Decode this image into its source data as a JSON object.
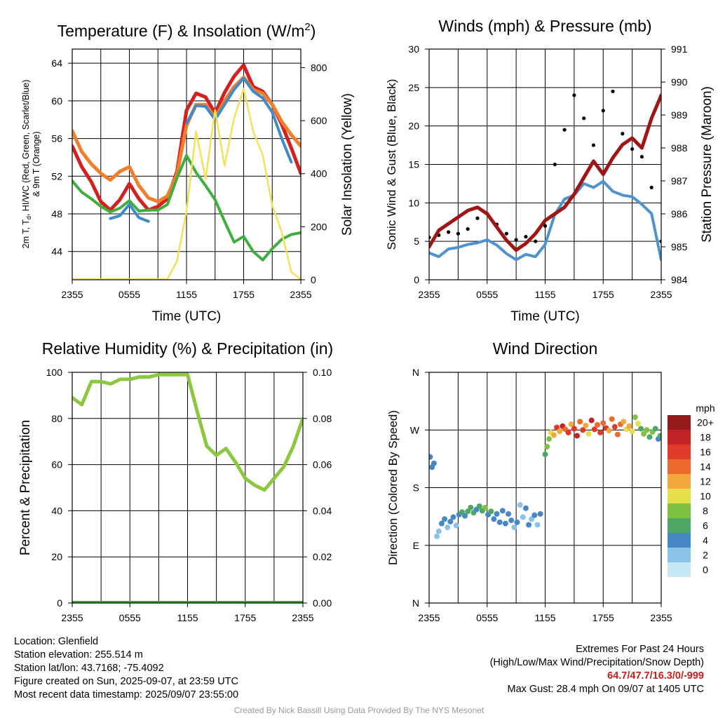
{
  "colors": {
    "temperature": "#d42020",
    "dewpoint": "#3fae3f",
    "heat_index_wind_chill": "#3d8bcb",
    "temp_9m": "#f07f2d",
    "insolation": "#f5e05a",
    "wind_speed": "#4d93cf",
    "gust": "#000000",
    "pressure": "#a01616",
    "humidity": "#8dc63f",
    "precip": "#3aa23a",
    "extremes_values": "#c81e1e",
    "credit": "#9a9a9a"
  },
  "chart_data": [
    {
      "id": "temperature",
      "type": "line",
      "title": "Temperature (F) & Insolation (W/m²)",
      "title_main": "Temperature (F) & Insolation (W/m",
      "title_sup": "2",
      "title_close": ")",
      "xlabel": "Time (UTC)",
      "ylabel_lines": [
        "2m T, Tₐ, HI/WC (Red, Green, Scarlet/Blue)",
        "& 9m T (Orange)"
      ],
      "ylabel_left": "2m T, T",
      "ylabel_sub": "d",
      "ylabel_right": ", HI/WC (Red, Green, Scarlet/Blue)",
      "ylabel_line2": "& 9m T (Orange)",
      "y2label": "Solar Insolation (Yellow)",
      "x_ticks": [
        "2355",
        "0555",
        "1155",
        "1755",
        "2355"
      ],
      "x": [
        0,
        1,
        2,
        3,
        4,
        5,
        6,
        7,
        8,
        9,
        10,
        11,
        12,
        13,
        14,
        15,
        16,
        17,
        18,
        19,
        20,
        21,
        22,
        23,
        24
      ],
      "ylim": [
        41,
        65.5
      ],
      "yticks": [
        44,
        48,
        52,
        56,
        60,
        64
      ],
      "y2lim": [
        0,
        870
      ],
      "y2ticks": [
        0,
        200,
        400,
        600,
        800
      ],
      "grid": true,
      "series": [
        {
          "name": "2m Temperature",
          "axis": "left",
          "color": "#d42020",
          "width": 5,
          "values": [
            55.2,
            53.0,
            51.4,
            49.3,
            48.4,
            49.5,
            51.2,
            49.6,
            48.4,
            48.8,
            49.6,
            52.5,
            59.0,
            60.8,
            60.4,
            58.7,
            60.9,
            62.6,
            63.8,
            61.5,
            61.0,
            59.6,
            57.5,
            55.0,
            52.3
          ]
        },
        {
          "name": "9m Temperature",
          "axis": "left",
          "color": "#f07f2d",
          "width": 5,
          "values": [
            56.8,
            54.6,
            53.3,
            52.3,
            51.6,
            52.5,
            53.0,
            51.0,
            49.7,
            49.3,
            49.9,
            52.2,
            57.4,
            59.6,
            59.6,
            58.2,
            60.0,
            61.5,
            62.5,
            61.2,
            60.8,
            59.6,
            57.8,
            56.4,
            55.2
          ]
        },
        {
          "name": "Heat Index / Wind Chill",
          "axis": "left",
          "color": "#3d8bcb",
          "width": 4,
          "values": [
            null,
            null,
            null,
            null,
            47.5,
            47.8,
            49.0,
            47.6,
            47.2,
            null,
            null,
            null,
            57.6,
            59.5,
            59.4,
            58.0,
            59.6,
            61.2,
            62.4,
            61.0,
            60.3,
            58.8,
            56.0,
            53.5,
            null
          ]
        },
        {
          "name": "Dewpoint",
          "axis": "left",
          "color": "#3fae3f",
          "width": 4,
          "values": [
            51.5,
            50.3,
            49.6,
            48.8,
            48.2,
            48.6,
            49.4,
            48.3,
            48.4,
            48.4,
            49.0,
            51.8,
            54.2,
            52.4,
            51.0,
            49.5,
            47.2,
            45.0,
            45.6,
            44.0,
            43.1,
            44.3,
            45.3,
            45.8,
            46.0
          ]
        },
        {
          "name": "Solar Insolation",
          "axis": "right",
          "color": "#f5e05a",
          "width": 2.5,
          "values": [
            2,
            2,
            2,
            2,
            2,
            2,
            2,
            2,
            2,
            2,
            2,
            70,
            260,
            560,
            380,
            640,
            430,
            610,
            720,
            560,
            470,
            280,
            180,
            30,
            2
          ]
        }
      ]
    },
    {
      "id": "winds",
      "type": "line",
      "title": "Winds (mph) & Pressure (mb)",
      "xlabel": "Time (UTC)",
      "ylabel": "Sonic Wind & Gust (Blue, Black)",
      "y2label": "Station Pressure (Maroon)",
      "x_ticks": [
        "2355",
        "0555",
        "1155",
        "1755",
        "2355"
      ],
      "x": [
        0,
        1,
        2,
        3,
        4,
        5,
        6,
        7,
        8,
        9,
        10,
        11,
        12,
        13,
        14,
        15,
        16,
        17,
        18,
        19,
        20,
        21,
        22,
        23,
        24
      ],
      "ylim": [
        0,
        30
      ],
      "yticks": [
        0,
        5,
        10,
        15,
        20,
        25,
        30
      ],
      "y2lim": [
        984,
        991
      ],
      "y2ticks": [
        984,
        985,
        986,
        987,
        988,
        989,
        990,
        991
      ],
      "grid": true,
      "series": [
        {
          "name": "Sonic Wind",
          "axis": "left",
          "color": "#4d93cf",
          "width": 4,
          "values": [
            3.5,
            3.0,
            4.0,
            4.2,
            4.6,
            4.8,
            5.2,
            4.5,
            3.4,
            2.6,
            3.3,
            3.0,
            4.6,
            8.5,
            10.5,
            11.0,
            12.5,
            12.0,
            12.8,
            11.5,
            11.0,
            10.8,
            9.8,
            8.6,
            2.6
          ]
        },
        {
          "name": "Gust",
          "axis": "left",
          "color": "#000000",
          "width": 0,
          "marker": "dot",
          "values": [
            5.5,
            5.8,
            6.2,
            6.0,
            6.6,
            8.0,
            8.6,
            7.2,
            6.0,
            5.2,
            5.6,
            5.0,
            7.0,
            15.0,
            19.5,
            24.0,
            21.0,
            17.5,
            22.0,
            24.5,
            19.0,
            17.0,
            16.0,
            12.0,
            5.0
          ]
        },
        {
          "name": "Station Pressure",
          "axis": "right",
          "color": "#a01616",
          "width": 5,
          "values": [
            985.0,
            985.5,
            985.7,
            985.9,
            986.1,
            986.2,
            986.0,
            985.6,
            985.2,
            984.9,
            985.1,
            985.4,
            985.8,
            986.0,
            986.2,
            986.6,
            987.1,
            987.6,
            987.2,
            987.7,
            988.1,
            988.3,
            988.0,
            988.9,
            989.6
          ]
        }
      ]
    },
    {
      "id": "humidity",
      "type": "line",
      "title": "Relative Humidity (%) & Precipitation (in)",
      "xlabel": "",
      "ylabel": "Percent & Precipitation",
      "x_ticks": [
        "2355",
        "0555",
        "1155",
        "1755",
        "2355"
      ],
      "x": [
        0,
        1,
        2,
        3,
        4,
        5,
        6,
        7,
        8,
        9,
        10,
        11,
        12,
        13,
        14,
        15,
        16,
        17,
        18,
        19,
        20,
        21,
        22,
        23,
        24
      ],
      "ylim": [
        0,
        100
      ],
      "yticks": [
        0,
        20,
        40,
        60,
        80,
        100
      ],
      "y2lim": [
        0,
        0.1
      ],
      "y2ticks": [
        "0.00",
        "0.02",
        "0.04",
        "0.06",
        "0.08",
        "0.10"
      ],
      "grid": true,
      "series": [
        {
          "name": "Relative Humidity",
          "axis": "left",
          "color": "#8dc63f",
          "width": 5,
          "values": [
            89,
            86,
            96,
            96,
            95,
            97,
            97,
            98,
            98,
            99,
            99,
            99,
            99,
            83,
            68,
            64,
            67,
            61,
            54,
            51,
            49,
            54,
            59,
            68,
            80
          ]
        },
        {
          "name": "Precipitation",
          "axis": "right",
          "color": "#3aa23a",
          "width": 6,
          "values": [
            0,
            0,
            0,
            0,
            0,
            0,
            0,
            0,
            0,
            0,
            0,
            0,
            0,
            0,
            0,
            0,
            0,
            0,
            0,
            0,
            0,
            0,
            0,
            0,
            0
          ]
        }
      ]
    },
    {
      "id": "wind_direction",
      "type": "scatter",
      "title": "Wind Direction",
      "ylabel": "Direction (Colored By Speed)",
      "x_ticks": [
        "2355",
        "0555",
        "1155",
        "1755",
        "2355"
      ],
      "ylim": [
        0,
        360
      ],
      "ytick_labels": [
        "N",
        "E",
        "S",
        "W",
        "N"
      ],
      "ytick_values": [
        0,
        90,
        180,
        270,
        360
      ],
      "grid": true,
      "colorbar_title": "mph",
      "colorbar_labels": [
        "0",
        "2",
        "4",
        "6",
        "8",
        "10",
        "12",
        "14",
        "16",
        "18",
        "20+"
      ],
      "colorbar_colors": [
        "#c6e8f7",
        "#8ac3e8",
        "#4787c4",
        "#4ca864",
        "#7fc142",
        "#e6df4a",
        "#f4a83e",
        "#ed6a2d",
        "#e03a2b",
        "#c42325",
        "#951b1d"
      ],
      "points": [
        {
          "t": 0.1,
          "dir": 228,
          "c": 2
        },
        {
          "t": 0.3,
          "dir": 212,
          "c": 2
        },
        {
          "t": 0.5,
          "dir": 218,
          "c": 2
        },
        {
          "t": 0.8,
          "dir": 104,
          "c": 1
        },
        {
          "t": 1.0,
          "dir": 112,
          "c": 1
        },
        {
          "t": 1.3,
          "dir": 124,
          "c": 2
        },
        {
          "t": 1.6,
          "dir": 131,
          "c": 2
        },
        {
          "t": 1.9,
          "dir": 118,
          "c": 1
        },
        {
          "t": 2.2,
          "dir": 127,
          "c": 2
        },
        {
          "t": 2.5,
          "dir": 134,
          "c": 2
        },
        {
          "t": 2.8,
          "dir": 121,
          "c": 1
        },
        {
          "t": 3.1,
          "dir": 138,
          "c": 2
        },
        {
          "t": 3.4,
          "dir": 142,
          "c": 3
        },
        {
          "t": 3.7,
          "dir": 136,
          "c": 2
        },
        {
          "t": 4.0,
          "dir": 143,
          "c": 3
        },
        {
          "t": 4.3,
          "dir": 149,
          "c": 3
        },
        {
          "t": 4.6,
          "dir": 141,
          "c": 3
        },
        {
          "t": 4.9,
          "dir": 146,
          "c": 2
        },
        {
          "t": 5.2,
          "dir": 151,
          "c": 3
        },
        {
          "t": 5.5,
          "dir": 144,
          "c": 3
        },
        {
          "t": 5.8,
          "dir": 149,
          "c": 4
        },
        {
          "t": 6.1,
          "dir": 138,
          "c": 2
        },
        {
          "t": 6.4,
          "dir": 143,
          "c": 3
        },
        {
          "t": 6.7,
          "dir": 131,
          "c": 2
        },
        {
          "t": 7.0,
          "dir": 139,
          "c": 2
        },
        {
          "t": 7.3,
          "dir": 126,
          "c": 2
        },
        {
          "t": 7.6,
          "dir": 144,
          "c": 2
        },
        {
          "t": 7.9,
          "dir": 124,
          "c": 2
        },
        {
          "t": 8.2,
          "dir": 139,
          "c": 2
        },
        {
          "t": 8.5,
          "dir": 129,
          "c": 2
        },
        {
          "t": 8.8,
          "dir": 118,
          "c": 1
        },
        {
          "t": 9.1,
          "dir": 126,
          "c": 2
        },
        {
          "t": 9.4,
          "dir": 153,
          "c": 1
        },
        {
          "t": 9.7,
          "dir": 134,
          "c": 1
        },
        {
          "t": 10.0,
          "dir": 148,
          "c": 2
        },
        {
          "t": 10.3,
          "dir": 122,
          "c": 2
        },
        {
          "t": 10.6,
          "dir": 131,
          "c": 1
        },
        {
          "t": 10.9,
          "dir": 137,
          "c": 2
        },
        {
          "t": 11.2,
          "dir": 122,
          "c": 1
        },
        {
          "t": 11.5,
          "dir": 139,
          "c": 2
        },
        {
          "t": 12.0,
          "dir": 232,
          "c": 3
        },
        {
          "t": 12.2,
          "dir": 244,
          "c": 4
        },
        {
          "t": 12.4,
          "dir": 256,
          "c": 4
        },
        {
          "t": 12.6,
          "dir": 266,
          "c": 5
        },
        {
          "t": 12.9,
          "dir": 262,
          "c": 6
        },
        {
          "t": 13.2,
          "dir": 274,
          "c": 8
        },
        {
          "t": 13.5,
          "dir": 268,
          "c": 6
        },
        {
          "t": 13.8,
          "dir": 276,
          "c": 9
        },
        {
          "t": 14.1,
          "dir": 271,
          "c": 7
        },
        {
          "t": 14.4,
          "dir": 266,
          "c": 8
        },
        {
          "t": 14.7,
          "dir": 279,
          "c": 6
        },
        {
          "t": 15.0,
          "dir": 272,
          "c": 8
        },
        {
          "t": 15.3,
          "dir": 261,
          "c": 9
        },
        {
          "t": 15.6,
          "dir": 283,
          "c": 7
        },
        {
          "t": 15.9,
          "dir": 270,
          "c": 8
        },
        {
          "t": 16.2,
          "dir": 277,
          "c": 6
        },
        {
          "t": 16.5,
          "dir": 264,
          "c": 5
        },
        {
          "t": 16.8,
          "dir": 285,
          "c": 9
        },
        {
          "t": 17.1,
          "dir": 271,
          "c": 8
        },
        {
          "t": 17.4,
          "dir": 278,
          "c": 7
        },
        {
          "t": 17.7,
          "dir": 266,
          "c": 8
        },
        {
          "t": 18.0,
          "dir": 281,
          "c": 7
        },
        {
          "t": 18.3,
          "dir": 273,
          "c": 8
        },
        {
          "t": 18.6,
          "dir": 269,
          "c": 6
        },
        {
          "t": 18.9,
          "dir": 287,
          "c": 7
        },
        {
          "t": 19.2,
          "dir": 275,
          "c": 8
        },
        {
          "t": 19.5,
          "dir": 263,
          "c": 7
        },
        {
          "t": 19.8,
          "dir": 279,
          "c": 7
        },
        {
          "t": 20.1,
          "dir": 283,
          "c": 6
        },
        {
          "t": 20.4,
          "dir": 271,
          "c": 5
        },
        {
          "t": 20.7,
          "dir": 276,
          "c": 6
        },
        {
          "t": 21.0,
          "dir": 268,
          "c": 5
        },
        {
          "t": 21.3,
          "dir": 290,
          "c": 4
        },
        {
          "t": 21.6,
          "dir": 280,
          "c": 5
        },
        {
          "t": 21.9,
          "dir": 272,
          "c": 3
        },
        {
          "t": 22.2,
          "dir": 264,
          "c": 4
        },
        {
          "t": 22.5,
          "dir": 270,
          "c": 4
        },
        {
          "t": 22.8,
          "dir": 259,
          "c": 3
        },
        {
          "t": 23.1,
          "dir": 267,
          "c": 4
        },
        {
          "t": 23.4,
          "dir": 272,
          "c": 3
        },
        {
          "t": 23.7,
          "dir": 256,
          "c": 2
        },
        {
          "t": 23.9,
          "dir": 261,
          "c": 3
        }
      ]
    }
  ],
  "info": {
    "location": "Location: Glenfield",
    "elevation": "Station elevation: 255.514 m",
    "latlon": "Station lat/lon: 43.7168; -75.4092",
    "created": "Figure created on Sun, 2025-09-07, at 23:59 UTC",
    "timestamp": "Most recent data timestamp: 2025/09/07 23:55:00"
  },
  "extremes": {
    "title": "Extremes For Past 24 Hours",
    "subtitle": "(High/Low/Max Wind/Precipitation/Snow Depth)",
    "values": "64.7/47.7/16.3/0/-999",
    "gust": "Max Gust: 28.4 mph On 09/07 at 1405 UTC"
  },
  "credit": "Created By Nick Bassill Using Data Provided By The NYS Mesonet"
}
